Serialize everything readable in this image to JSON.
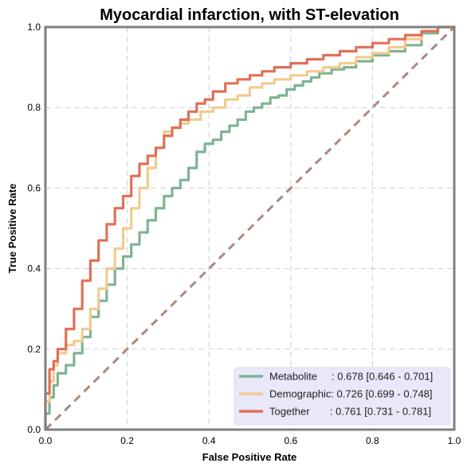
{
  "chart_data": {
    "type": "line",
    "title": "Myocardial infarction, with ST-elevation",
    "xlabel": "False Positive Rate",
    "ylabel": "True Positive Rate",
    "xlim": [
      0,
      1
    ],
    "ylim": [
      0,
      1
    ],
    "xticks": [
      "0.0",
      "0.2",
      "0.4",
      "0.6",
      "0.8",
      "1.0"
    ],
    "yticks": [
      "0.0",
      "0.2",
      "0.4",
      "0.6",
      "0.8",
      "1.0"
    ],
    "grid": true,
    "legend_position": "bottom-right",
    "series": [
      {
        "name": "Metabolite",
        "legend_label": "Metabolite     : 0.678 [0.646 - 0.701]",
        "color": "#7fb394",
        "x": [
          0,
          0.01,
          0.02,
          0.03,
          0.05,
          0.07,
          0.09,
          0.11,
          0.13,
          0.15,
          0.17,
          0.19,
          0.21,
          0.23,
          0.25,
          0.27,
          0.29,
          0.31,
          0.33,
          0.35,
          0.37,
          0.39,
          0.41,
          0.43,
          0.45,
          0.47,
          0.49,
          0.51,
          0.53,
          0.55,
          0.57,
          0.59,
          0.61,
          0.63,
          0.65,
          0.67,
          0.7,
          0.73,
          0.76,
          0.8,
          0.84,
          0.88,
          0.92,
          0.96,
          1.0
        ],
        "y": [
          0,
          0.04,
          0.08,
          0.11,
          0.14,
          0.16,
          0.19,
          0.23,
          0.28,
          0.32,
          0.36,
          0.4,
          0.43,
          0.46,
          0.49,
          0.52,
          0.55,
          0.58,
          0.6,
          0.62,
          0.65,
          0.69,
          0.71,
          0.72,
          0.74,
          0.755,
          0.77,
          0.79,
          0.8,
          0.81,
          0.825,
          0.83,
          0.845,
          0.855,
          0.865,
          0.875,
          0.885,
          0.895,
          0.9,
          0.915,
          0.93,
          0.94,
          0.955,
          0.985,
          1.0
        ]
      },
      {
        "name": "Demographic",
        "legend_label": "Demographic: 0.726 [0.699 - 0.748]",
        "color": "#f2cb8f",
        "x": [
          0,
          0.01,
          0.02,
          0.03,
          0.05,
          0.07,
          0.09,
          0.11,
          0.13,
          0.15,
          0.17,
          0.19,
          0.21,
          0.23,
          0.25,
          0.27,
          0.29,
          0.31,
          0.33,
          0.35,
          0.38,
          0.41,
          0.44,
          0.47,
          0.5,
          0.53,
          0.56,
          0.6,
          0.64,
          0.68,
          0.72,
          0.76,
          0.8,
          0.84,
          0.88,
          0.92,
          0.96,
          1.0
        ],
        "y": [
          0,
          0.07,
          0.12,
          0.16,
          0.19,
          0.21,
          0.22,
          0.25,
          0.3,
          0.35,
          0.4,
          0.45,
          0.5,
          0.55,
          0.6,
          0.65,
          0.7,
          0.74,
          0.75,
          0.76,
          0.77,
          0.79,
          0.8,
          0.82,
          0.83,
          0.85,
          0.86,
          0.87,
          0.88,
          0.89,
          0.9,
          0.91,
          0.925,
          0.935,
          0.95,
          0.97,
          0.99,
          1.0
        ]
      },
      {
        "name": "Together",
        "legend_label": "Together       : 0.761 [0.731 - 0.781]",
        "color": "#e07058",
        "x": [
          0,
          0.01,
          0.02,
          0.03,
          0.05,
          0.07,
          0.09,
          0.11,
          0.13,
          0.15,
          0.17,
          0.19,
          0.21,
          0.23,
          0.25,
          0.27,
          0.29,
          0.31,
          0.33,
          0.35,
          0.37,
          0.39,
          0.41,
          0.44,
          0.47,
          0.5,
          0.53,
          0.56,
          0.6,
          0.64,
          0.68,
          0.72,
          0.76,
          0.8,
          0.84,
          0.88,
          0.92,
          0.96,
          1.0
        ],
        "y": [
          0,
          0.09,
          0.15,
          0.17,
          0.2,
          0.25,
          0.3,
          0.37,
          0.42,
          0.47,
          0.51,
          0.55,
          0.58,
          0.63,
          0.66,
          0.68,
          0.7,
          0.73,
          0.75,
          0.77,
          0.79,
          0.81,
          0.82,
          0.84,
          0.86,
          0.87,
          0.88,
          0.89,
          0.9,
          0.91,
          0.92,
          0.93,
          0.94,
          0.95,
          0.96,
          0.97,
          0.98,
          0.99,
          1.0
        ]
      }
    ],
    "reference_line": {
      "x": [
        0,
        1
      ],
      "y": [
        0,
        1
      ],
      "color": "#a98b7b",
      "style": "dashed"
    },
    "legend_background": "#e8e8f8"
  }
}
